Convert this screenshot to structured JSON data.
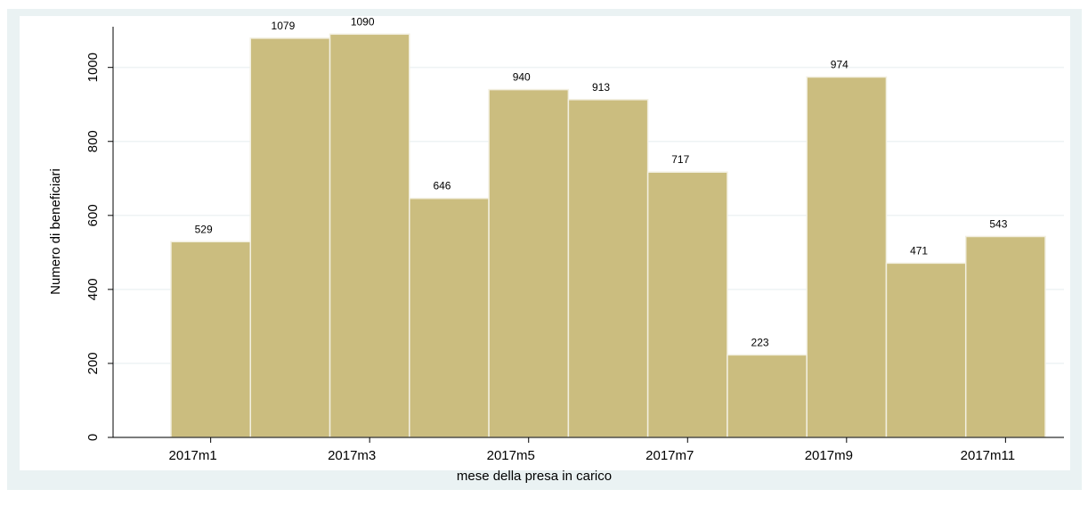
{
  "chart_data": {
    "type": "bar",
    "categories": [
      "2017m1",
      null,
      "2017m3",
      null,
      "2017m5",
      null,
      "2017m7",
      null,
      "2017m9",
      null,
      "2017m11"
    ],
    "values": [
      529,
      1079,
      1090,
      646,
      940,
      913,
      717,
      223,
      974,
      471,
      543
    ],
    "color": "#cbbd7f",
    "xlabel": "mese della presa in carico",
    "ylabel": "Numero di beneficiari",
    "ylim": [
      0,
      1110
    ],
    "yticks": [
      0,
      200,
      400,
      600,
      800,
      1000
    ],
    "grid": true
  }
}
